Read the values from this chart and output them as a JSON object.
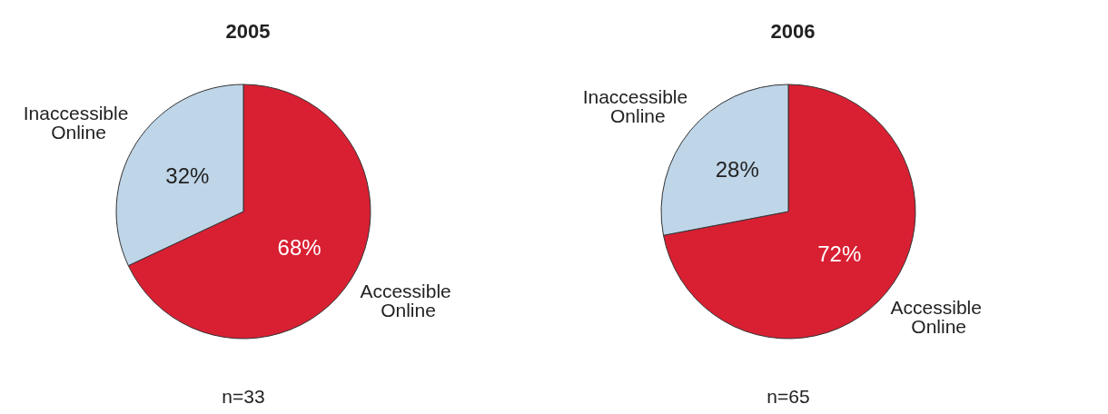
{
  "chart_data": [
    {
      "type": "pie",
      "title": "2005",
      "categories": [
        "Accessible Online",
        "Inaccessible Online"
      ],
      "values": [
        68,
        32
      ],
      "value_labels": [
        "68%",
        "32%"
      ],
      "colors": [
        "#d92033",
        "#bfd5e8"
      ],
      "annotations": [
        "n=33"
      ]
    },
    {
      "type": "pie",
      "title": "2006",
      "categories": [
        "Accessible Online",
        "Inaccessible Online"
      ],
      "values": [
        72,
        28
      ],
      "value_labels": [
        "72%",
        "28%"
      ],
      "colors": [
        "#d92033",
        "#bfd5e8"
      ],
      "annotations": [
        "n=65"
      ]
    }
  ]
}
